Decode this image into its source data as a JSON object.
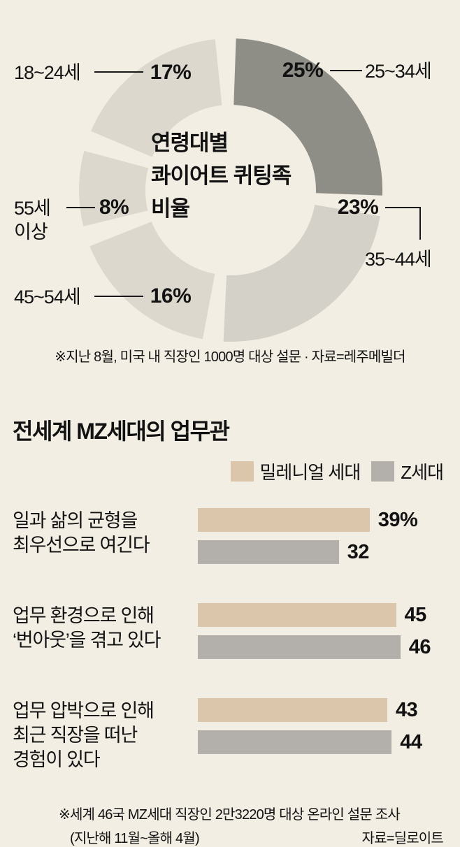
{
  "page": {
    "background": "#f3eee3",
    "text_color": "#121212"
  },
  "donut": {
    "title_lines": [
      "연령대별",
      "콰이어트 퀴팅족",
      "비율"
    ],
    "callouts": {
      "a1824": {
        "name": "18~24세",
        "pct": "17%"
      },
      "a2534": {
        "name": "25~34세",
        "pct": "25%"
      },
      "a3544": {
        "name": "35~44세",
        "pct": "23%"
      },
      "a4554": {
        "name": "45~54세",
        "pct": "16%"
      },
      "a55plus": {
        "name_line1": "55세",
        "name_line2": "이상",
        "pct": "8%"
      }
    },
    "footnote": "※지난 8월, 미국 내 직장인 1000명 대상 설문 · 자료=레주메빌더"
  },
  "worklife": {
    "title": "전세계 MZ세대의 업무관",
    "legend": [
      {
        "label": "밀레니얼 세대",
        "color": "#dbc5ab"
      },
      {
        "label": "Z세대",
        "color": "#b3b0ab"
      }
    ],
    "rows": [
      {
        "lines": [
          "일과 삶의 균형을",
          "최우선으로 여긴다"
        ],
        "millennial_label": "39%",
        "genz_label": "32"
      },
      {
        "lines": [
          "업무 환경으로 인해",
          "‘번아웃’을 겪고 있다"
        ],
        "millennial_label": "45",
        "genz_label": "46"
      },
      {
        "lines": [
          "업무 압박으로 인해",
          "최근 직장을 떠난",
          "경험이 있다"
        ],
        "millennial_label": "43",
        "genz_label": "44"
      }
    ],
    "footnote_line1": "※세계 46국 MZ세대 직장인 2만3220명 대상 온라인 설문 조사",
    "footnote_line2": "(지난해 11월~올해 4월)",
    "source": "자료=딜로이트"
  },
  "chart_data": [
    {
      "type": "pie",
      "subtype": "donut",
      "title": "연령대별 콰이어트 퀴팅족 비율",
      "labels": [
        "25~34세",
        "35~44세",
        "45~54세",
        "55세 이상",
        "18~24세"
      ],
      "values": [
        25,
        23,
        16,
        8,
        17
      ],
      "unit": "%",
      "colors": [
        "#8e8e87",
        "#d4d1c8",
        "#dcd8cd",
        "#dcd8cd",
        "#dcd8cd"
      ],
      "note": "※지난 8월, 미국 내 직장인 1000명 대상 설문 · 자료=레주메빌더"
    },
    {
      "type": "bar",
      "orientation": "horizontal",
      "title": "전세계 MZ세대의 업무관",
      "categories": [
        "일과 삶의 균형을 최우선으로 여긴다",
        "업무 환경으로 인해 ‘번아웃’을 겪고 있다",
        "업무 압박으로 인해 최근 직장을 떠난 경험이 있다"
      ],
      "series": [
        {
          "name": "밀레니얼 세대",
          "color": "#dbc5ab",
          "values": [
            39,
            45,
            43
          ]
        },
        {
          "name": "Z세대",
          "color": "#b3b0ab",
          "values": [
            32,
            46,
            44
          ]
        }
      ],
      "unit": "%",
      "xlim": [
        0,
        50
      ],
      "legend_position": "top-right",
      "note": "※세계 46국 MZ세대 직장인 2만3220명 대상 온라인 설문 조사 (지난해 11월~올해 4월), 자료=딜로이트"
    }
  ]
}
